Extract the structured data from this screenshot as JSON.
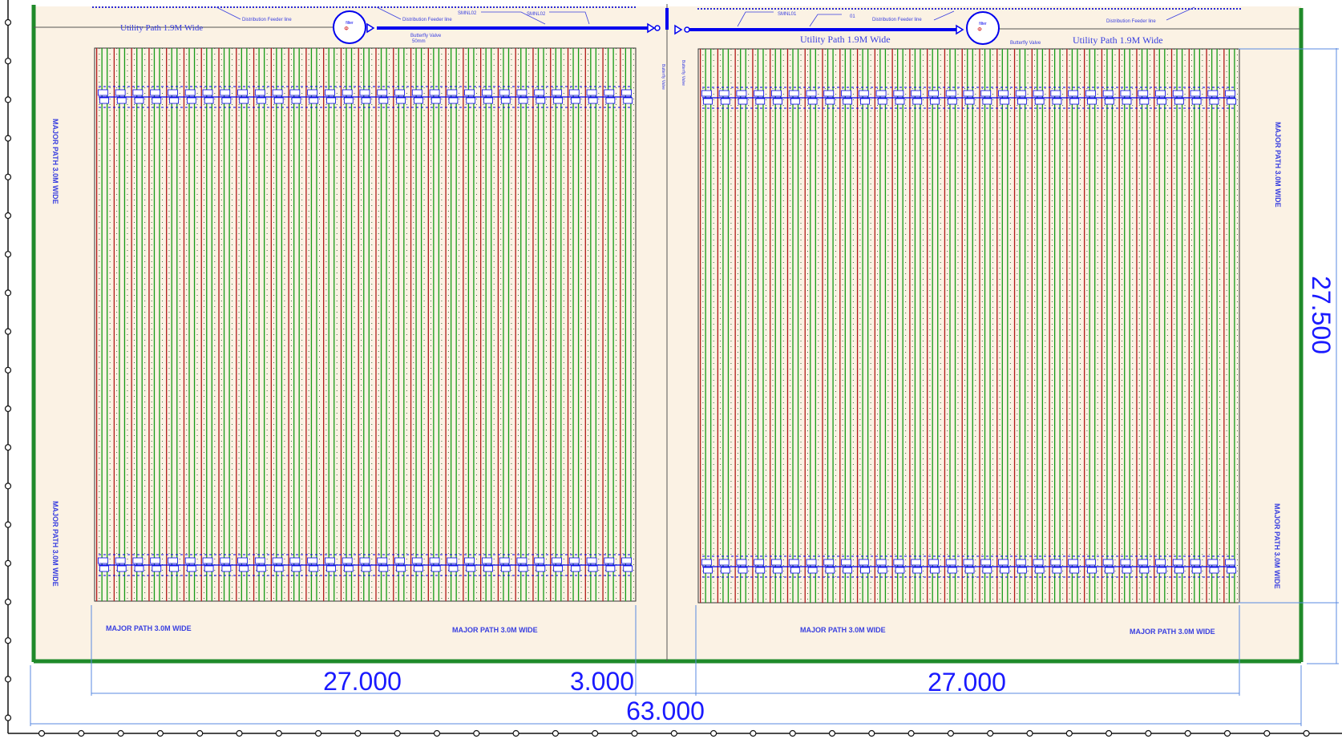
{
  "colors": {
    "ground": "#fbf2e4",
    "boundary": "#1f8a2a",
    "dimension": "#1a1aff",
    "annotation": "#3a40e0",
    "pipe": "#0000ee",
    "red_lateral": "#b01818",
    "green_lateral": "#169b16",
    "fence": "#111111"
  },
  "labels": {
    "utility_path_left": "Utility Path 1.9M Wide",
    "utility_path_center": "Utility Path 1.9M Wide",
    "utility_path_right": "Utility Path 1.9M Wide",
    "distribution_feeder": "Distribution Feeder line",
    "smn_left_1": "SMNL02",
    "smn_left_2": "SMNL02",
    "smn_right_1": "SMNL01",
    "smn_right_2": "01",
    "butterfly_valve": "Butterfly Valve",
    "valve_size": "50mm",
    "major_path_vertical": "MAJOR PATH 3.0M WIDE",
    "major_path_bottom_1": "MAJOR  PATH 3.0M WIDE",
    "major_path_bottom_2": "MAJOR PATH 3.0M WIDE",
    "major_path_bottom_3": "MAJOR  PATH 3.0M WIDE",
    "major_path_bottom_4": "MAJOR PATH 3.0M WIDE"
  },
  "dimensions": {
    "block_left_width": "27.000",
    "gap_width": "3.000",
    "block_right_width": "27.000",
    "total_width": "63.000",
    "height": "27.500"
  },
  "blocks": {
    "left_row_count": 31,
    "right_row_count": 31
  }
}
